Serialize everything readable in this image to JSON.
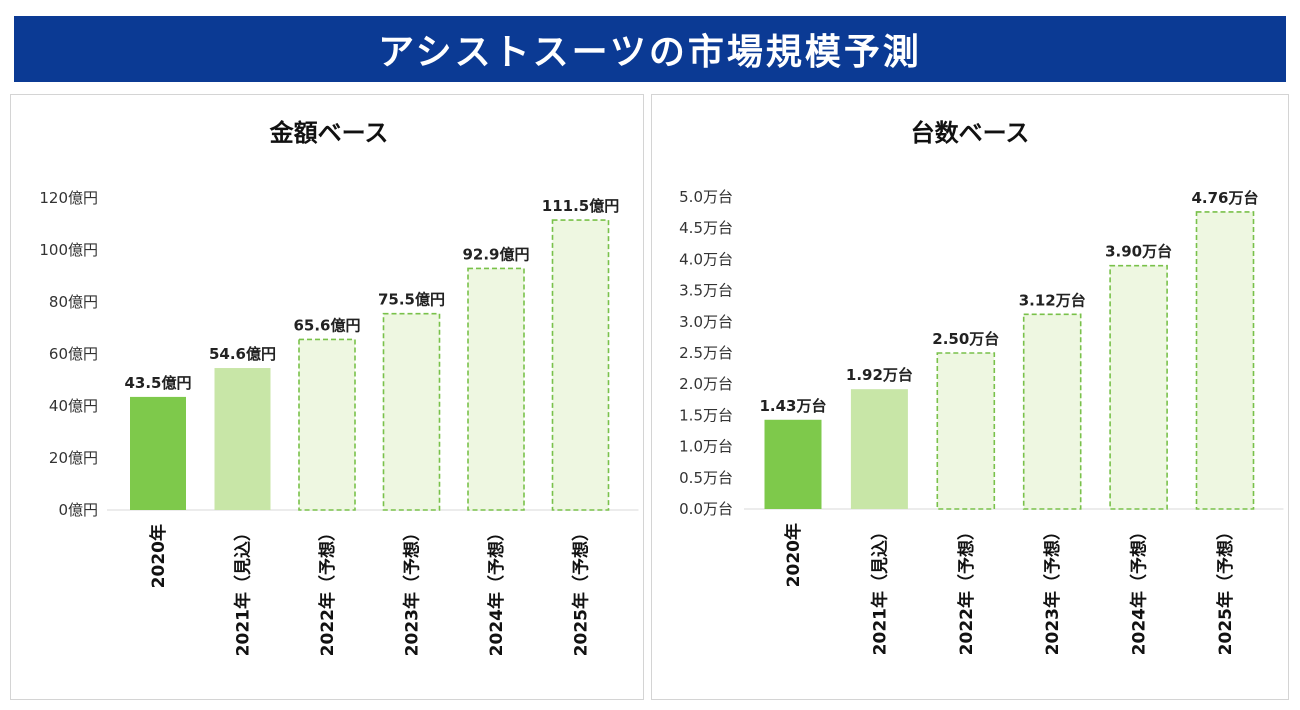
{
  "page_title": "アシストスーツの市場規模予測",
  "colors": {
    "banner": "#0b3a94",
    "actual_fill": "#7ec94b",
    "estimate_fill": "#c8e6a7",
    "forecast_fill": "#eef7e1",
    "forecast_border": "#79c14a"
  },
  "chart_data": [
    {
      "type": "bar",
      "title": "金額ベース",
      "categories": [
        "2020年",
        "2021年（見込）",
        "2022年（予想）",
        "2023年（予想）",
        "2024年（予想）",
        "2025年（予想）"
      ],
      "values": [
        43.5,
        54.6,
        65.6,
        75.5,
        92.9,
        111.5
      ],
      "value_labels": [
        "43.5億円",
        "54.6億円",
        "65.6億円",
        "75.5億円",
        "92.9億円",
        "111.5億円"
      ],
      "bar_kind": [
        "actual",
        "estimate",
        "forecast",
        "forecast",
        "forecast",
        "forecast"
      ],
      "ylim": [
        0,
        120
      ],
      "yticks": [
        0,
        20,
        40,
        60,
        80,
        100,
        120
      ],
      "ytick_labels": [
        "0億円",
        "20億円",
        "40億円",
        "60億円",
        "80億円",
        "100億円",
        "120億円"
      ],
      "xlabel": "",
      "ylabel": "",
      "grid": false
    },
    {
      "type": "bar",
      "title": "台数ベース",
      "categories": [
        "2020年",
        "2021年（見込）",
        "2022年（予想）",
        "2023年（予想）",
        "2024年（予想）",
        "2025年（予想）"
      ],
      "values": [
        1.43,
        1.92,
        2.5,
        3.12,
        3.9,
        4.76
      ],
      "value_labels": [
        "1.43万台",
        "1.92万台",
        "2.50万台",
        "3.12万台",
        "3.90万台",
        "4.76万台"
      ],
      "bar_kind": [
        "actual",
        "estimate",
        "forecast",
        "forecast",
        "forecast",
        "forecast"
      ],
      "ylim": [
        0,
        5.0
      ],
      "yticks": [
        0,
        0.5,
        1.0,
        1.5,
        2.0,
        2.5,
        3.0,
        3.5,
        4.0,
        4.5,
        5.0
      ],
      "ytick_labels": [
        "0.0万台",
        "0.5万台",
        "1.0万台",
        "1.5万台",
        "2.0万台",
        "2.5万台",
        "3.0万台",
        "3.5万台",
        "4.0万台",
        "4.5万台",
        "5.0万台"
      ],
      "xlabel": "",
      "ylabel": "",
      "grid": false
    }
  ]
}
